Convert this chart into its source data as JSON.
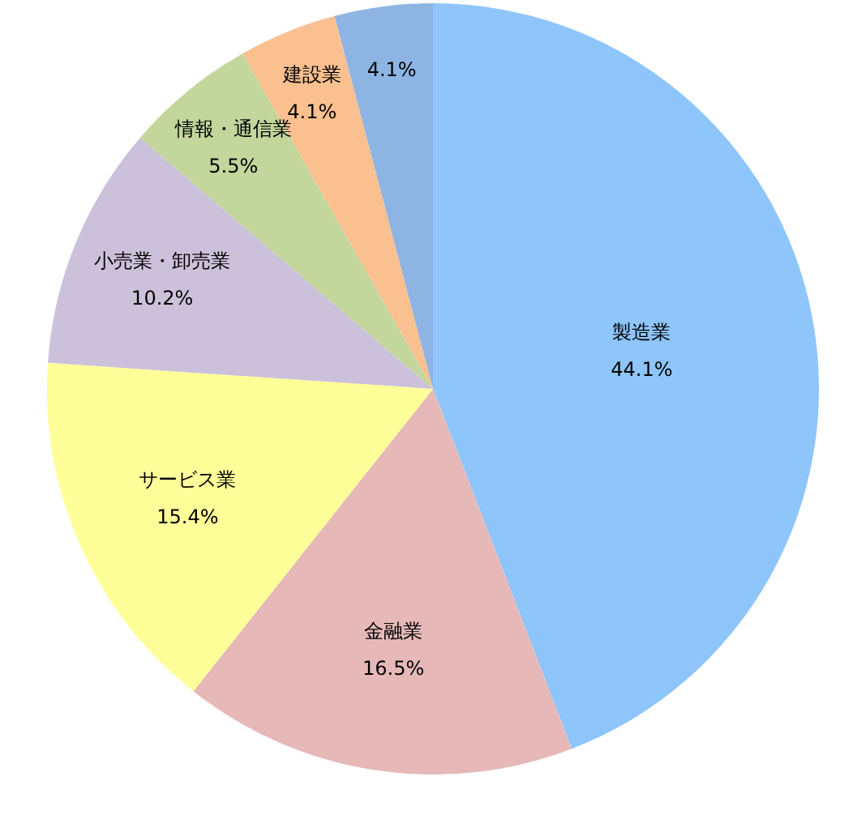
{
  "chart_data": {
    "type": "pie",
    "categories": [
      "製造業",
      "金融業",
      "サービス業",
      "小売業・卸売業",
      "情報・通信業",
      "建設業",
      null
    ],
    "values": [
      44.1,
      16.5,
      15.4,
      10.2,
      5.5,
      4.1,
      4.1
    ],
    "value_labels": [
      "44.1%",
      "16.5%",
      "15.4%",
      "10.2%",
      "5.5%",
      "4.1%",
      "4.1%"
    ],
    "colors": [
      "#8ec5fb",
      "#e6b9b8",
      "#ffff99",
      "#ccc1da",
      "#c3d69b",
      "#fac090",
      "#8eb4e3"
    ],
    "legend": false
  }
}
